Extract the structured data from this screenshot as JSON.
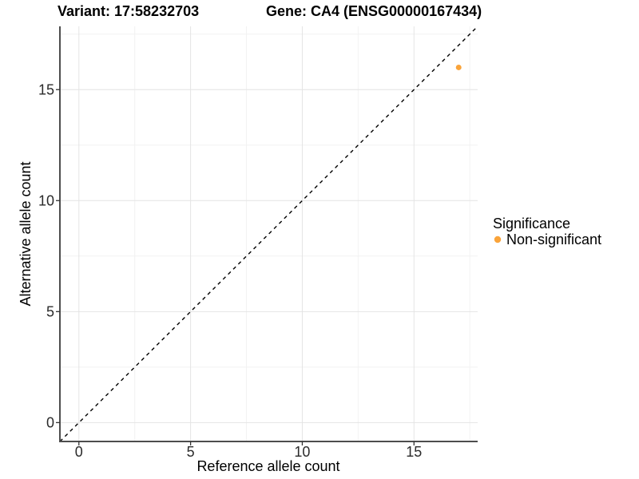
{
  "header": {
    "variant_title": "Variant: 17:58232703",
    "gene_title": "Gene: CA4 (ENSG00000167434)"
  },
  "chart_data": {
    "type": "scatter",
    "title_left": "Variant: 17:58232703",
    "title_right": "Gene: CA4 (ENSG00000167434)",
    "xlabel": "Reference allele count",
    "ylabel": "Alternative allele count",
    "xlim": [
      -0.85,
      17.85
    ],
    "ylim": [
      -0.85,
      17.85
    ],
    "x_major_ticks": [
      0,
      5,
      10,
      15
    ],
    "y_major_ticks": [
      0,
      5,
      10,
      15
    ],
    "x_minor_ticks": [
      2.5,
      7.5,
      12.5,
      17.5
    ],
    "y_minor_ticks": [
      2.5,
      7.5,
      12.5,
      17.5
    ],
    "grid": "major+minor",
    "reference_line": {
      "type": "identity",
      "style": "dashed",
      "color": "#000000"
    },
    "series": [
      {
        "name": "Non-significant",
        "color": "#FAA43A",
        "points": [
          [
            17,
            16
          ]
        ]
      }
    ],
    "legend": {
      "title": "Significance",
      "position": "right",
      "items": [
        {
          "label": "Non-significant",
          "color": "#FAA43A"
        }
      ]
    }
  },
  "colors": {
    "background": "#ffffff",
    "grid_major": "#e4e4e4",
    "grid_minor": "#f2f2f2",
    "axis_line": "#4d4d4d",
    "tick_mark": "#333333",
    "point": "#FAA43A",
    "identity_line": "#000000"
  }
}
